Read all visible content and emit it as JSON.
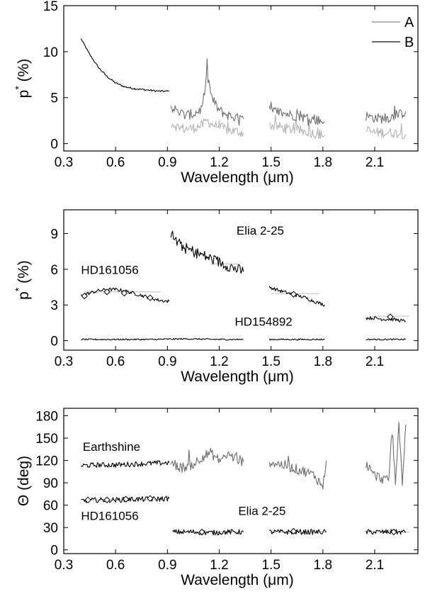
{
  "colors": {
    "black": "#000000",
    "grey_a": "#b4b4b4",
    "grey_b": "#6e6e6e",
    "ref": "#c8c8c8"
  },
  "chart_data": [
    {
      "type": "line",
      "panel": "top",
      "xlabel": "Wavelength (μm)",
      "ylabel_main": "p",
      "ylabel_sup": "*",
      "ylabel_unit": "(%)",
      "xlim": [
        0.3,
        2.35
      ],
      "ylim": [
        -0.8,
        15
      ],
      "xticks": [
        0.3,
        0.6,
        0.9,
        1.2,
        1.5,
        1.8,
        2.1
      ],
      "xtick_labels": [
        "0.3",
        "0.6",
        "0.9",
        "1.2",
        "1.5",
        "1.8",
        "2.1"
      ],
      "yticks": [
        0,
        5,
        10,
        15
      ],
      "ytick_labels": [
        "0",
        "5",
        "10",
        "15"
      ],
      "legend": {
        "placement": "top-right",
        "entries": [
          "A",
          "B"
        ]
      },
      "series": [
        {
          "name": "",
          "style": "black",
          "x": [
            0.4,
            0.45,
            0.5,
            0.55,
            0.6,
            0.65,
            0.7,
            0.75,
            0.8,
            0.85,
            0.91
          ],
          "y": [
            11.4,
            9.7,
            8.3,
            7.3,
            6.6,
            6.2,
            6.0,
            5.9,
            5.8,
            5.7,
            5.7
          ]
        },
        {
          "name": "A",
          "style": "grey_a",
          "segments": [
            {
              "x": [
                0.92,
                0.96,
                1.0,
                1.05,
                1.1,
                1.13,
                1.16,
                1.2,
                1.25,
                1.3,
                1.34
              ],
              "y": [
                2.3,
                1.8,
                1.6,
                1.7,
                2.0,
                2.5,
                2.1,
                1.8,
                1.5,
                1.3,
                1.2
              ]
            },
            {
              "x": [
                1.49,
                1.55,
                1.6,
                1.65,
                1.7,
                1.75,
                1.81
              ],
              "y": [
                2.0,
                1.8,
                1.6,
                1.5,
                1.3,
                1.1,
                0.9
              ]
            },
            {
              "x": [
                2.05,
                2.1,
                2.15,
                2.2,
                2.25,
                2.28
              ],
              "y": [
                1.4,
                1.2,
                1.2,
                1.2,
                1.1,
                1.0
              ]
            }
          ]
        },
        {
          "name": "B",
          "style": "grey_b",
          "segments": [
            {
              "x": [
                0.92,
                0.96,
                1.0,
                1.05,
                1.1,
                1.13,
                1.16,
                1.2,
                1.25,
                1.3,
                1.34
              ],
              "y": [
                4.0,
                3.5,
                3.1,
                3.2,
                3.8,
                7.5,
                4.8,
                3.6,
                3.1,
                2.8,
                2.7
              ]
            },
            {
              "x": [
                1.49,
                1.55,
                1.6,
                1.65,
                1.7,
                1.75,
                1.81
              ],
              "y": [
                3.6,
                3.4,
                3.2,
                3.0,
                2.8,
                2.6,
                2.4
              ]
            },
            {
              "x": [
                2.05,
                2.1,
                2.15,
                2.2,
                2.25,
                2.28
              ],
              "y": [
                3.0,
                2.8,
                2.7,
                2.9,
                3.2,
                3.5
              ]
            }
          ]
        }
      ]
    },
    {
      "type": "line",
      "panel": "middle",
      "xlabel": "Wavelength (μm)",
      "ylabel_main": "p",
      "ylabel_sup": "*",
      "ylabel_unit": "(%)",
      "xlim": [
        0.3,
        2.35
      ],
      "ylim": [
        -0.8,
        11
      ],
      "xticks": [
        0.3,
        0.6,
        0.9,
        1.2,
        1.5,
        1.8,
        2.1
      ],
      "xtick_labels": [
        "0.3",
        "0.6",
        "0.9",
        "1.2",
        "1.5",
        "1.8",
        "2.1"
      ],
      "yticks": [
        0,
        3,
        6,
        9
      ],
      "ytick_labels": [
        "0",
        "3",
        "6",
        "9"
      ],
      "annotations": [
        {
          "text": "Elia 2-25",
          "x": 1.3,
          "y": 8.9
        },
        {
          "text": "HD161056",
          "x": 0.4,
          "y": 5.6
        },
        {
          "text": "HD154892",
          "x": 1.29,
          "y": 1.25
        }
      ],
      "series": [
        {
          "name": "Elia 2-25",
          "style": "black",
          "segments": [
            {
              "x": [
                0.92,
                0.96,
                1.0,
                1.05,
                1.1,
                1.15,
                1.2,
                1.25,
                1.3,
                1.34
              ],
              "y": [
                9.0,
                8.2,
                7.8,
                7.5,
                7.2,
                6.9,
                6.6,
                6.3,
                6.0,
                5.8
              ]
            }
          ]
        },
        {
          "name": "HD161056",
          "style": "black",
          "segments": [
            {
              "x": [
                0.4,
                0.45,
                0.5,
                0.55,
                0.6,
                0.65,
                0.7,
                0.75,
                0.8,
                0.85,
                0.91
              ],
              "y": [
                3.8,
                4.0,
                4.2,
                4.3,
                4.3,
                4.2,
                4.0,
                3.8,
                3.6,
                3.4,
                3.3
              ]
            },
            {
              "x": [
                1.49,
                1.55,
                1.6,
                1.65,
                1.7,
                1.75,
                1.81
              ],
              "y": [
                4.5,
                4.2,
                4.0,
                3.8,
                3.6,
                3.3,
                3.0
              ]
            },
            {
              "x": [
                2.05,
                2.1,
                2.15,
                2.2,
                2.25,
                2.28
              ],
              "y": [
                1.9,
                1.9,
                1.8,
                1.8,
                1.7,
                1.6
              ]
            }
          ]
        },
        {
          "name": "HD154892",
          "style": "black",
          "segments": [
            {
              "x": [
                0.4,
                0.6,
                0.8,
                1.0,
                1.2,
                1.34
              ],
              "y": [
                0.1,
                0.1,
                0.1,
                0.15,
                0.1,
                0.1
              ]
            },
            {
              "x": [
                1.49,
                1.6,
                1.81
              ],
              "y": [
                0.1,
                0.1,
                0.1
              ]
            },
            {
              "x": [
                2.05,
                2.15,
                2.28
              ],
              "y": [
                0.1,
                0.1,
                0.1
              ]
            }
          ]
        }
      ],
      "reference_lines": [
        {
          "x": [
            0.42,
            0.86
          ],
          "y": [
            4.1,
            4.1
          ]
        },
        {
          "x": [
            1.15,
            1.32
          ],
          "y": [
            6.45,
            6.45
          ]
        },
        {
          "x": [
            1.5,
            1.78
          ],
          "y": [
            3.95,
            3.95
          ]
        },
        {
          "x": [
            2.08,
            2.3
          ],
          "y": [
            2.05,
            2.05
          ]
        }
      ],
      "markers": [
        {
          "x": 0.42,
          "y": 3.75
        },
        {
          "x": 0.55,
          "y": 4.1
        },
        {
          "x": 0.65,
          "y": 4.0
        },
        {
          "x": 0.8,
          "y": 3.6
        },
        {
          "x": 1.63,
          "y": 3.9
        },
        {
          "x": 2.19,
          "y": 2.0
        }
      ]
    },
    {
      "type": "line",
      "panel": "bottom",
      "xlabel": "Wavelength (μm)",
      "ylabel_main": "Θ",
      "ylabel_sup": "",
      "ylabel_unit": "(deg)",
      "xlim": [
        0.3,
        2.35
      ],
      "ylim": [
        -5,
        190
      ],
      "xticks": [
        0.3,
        0.6,
        0.9,
        1.2,
        1.5,
        1.8,
        2.1
      ],
      "xtick_labels": [
        "0.3",
        "0.6",
        "0.9",
        "1.2",
        "1.5",
        "1.8",
        "2.1"
      ],
      "yticks": [
        0,
        30,
        60,
        90,
        120,
        150,
        180
      ],
      "ytick_labels": [
        "0",
        "30",
        "60",
        "90",
        "120",
        "150",
        "180"
      ],
      "annotations": [
        {
          "text": "Earthshine",
          "x": 0.41,
          "y": 133
        },
        {
          "text": "HD161056",
          "x": 0.4,
          "y": 40
        },
        {
          "text": "Elia 2-25",
          "x": 1.31,
          "y": 47
        }
      ],
      "series": [
        {
          "name": "Earthshine",
          "style": "black",
          "segments": [
            {
              "x": [
                0.4,
                0.5,
                0.6,
                0.7,
                0.8,
                0.91
              ],
              "y": [
                113,
                114,
                114,
                115,
                116,
                117
              ]
            }
          ]
        },
        {
          "name": "Earthshine",
          "style": "grey_b",
          "segments": [
            {
              "x": [
                0.92,
                0.98,
                1.05,
                1.1,
                1.15,
                1.2,
                1.25,
                1.3,
                1.34
              ],
              "y": [
                117,
                110,
                115,
                125,
                130,
                120,
                128,
                122,
                118
              ]
            },
            {
              "x": [
                1.49,
                1.55,
                1.6,
                1.65,
                1.7,
                1.75,
                1.8,
                1.82
              ],
              "y": [
                118,
                115,
                112,
                108,
                105,
                100,
                85,
                120
              ]
            },
            {
              "x": [
                2.05,
                2.1,
                2.15,
                2.18,
                2.2,
                2.22,
                2.24,
                2.26,
                2.28
              ],
              "y": [
                115,
                100,
                95,
                92,
                160,
                93,
                165,
                92,
                168
              ]
            }
          ]
        },
        {
          "name": "HD161056",
          "style": "black",
          "segments": [
            {
              "x": [
                0.4,
                0.5,
                0.6,
                0.7,
                0.8,
                0.91
              ],
              "y": [
                66,
                67,
                67,
                68,
                68,
                69
              ]
            }
          ]
        },
        {
          "name": "Elia 2-25",
          "style": "black",
          "segments": [
            {
              "x": [
                0.93,
                1.05,
                1.15,
                1.25,
                1.34
              ],
              "y": [
                24,
                24,
                23,
                24,
                24
              ]
            },
            {
              "x": [
                1.49,
                1.6,
                1.7,
                1.82
              ],
              "y": [
                24,
                24,
                24,
                24
              ]
            },
            {
              "x": [
                2.05,
                2.15,
                2.28
              ],
              "y": [
                24,
                24,
                24
              ]
            }
          ]
        }
      ],
      "reference_lines": [
        {
          "x": [
            0.42,
            0.88
          ],
          "y": [
            67,
            67
          ]
        },
        {
          "x": [
            0.95,
            1.32
          ],
          "y": [
            24,
            24
          ]
        },
        {
          "x": [
            1.5,
            1.8
          ],
          "y": [
            24,
            24
          ]
        },
        {
          "x": [
            2.07,
            2.3
          ],
          "y": [
            24,
            24
          ]
        }
      ],
      "markers": [
        {
          "x": 0.44,
          "y": 67
        },
        {
          "x": 0.55,
          "y": 67
        },
        {
          "x": 0.66,
          "y": 68
        },
        {
          "x": 0.8,
          "y": 69
        },
        {
          "x": 1.1,
          "y": 24
        },
        {
          "x": 1.63,
          "y": 25
        },
        {
          "x": 2.21,
          "y": 24
        }
      ]
    }
  ]
}
